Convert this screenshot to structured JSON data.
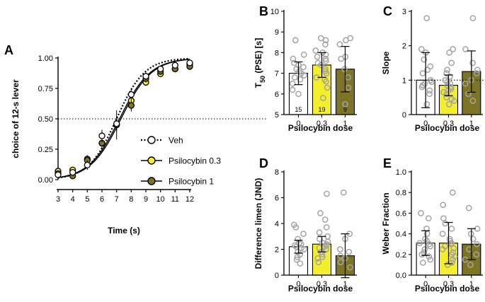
{
  "colors": {
    "veh": "#ffffff",
    "psi03": "#f4ee2c",
    "psi1": "#7d7425",
    "point_gray": "#a4a4a4",
    "axis": "#000000"
  },
  "chart_data": [
    {
      "panel": "A",
      "type": "line",
      "xlabel": "Time (s)",
      "ylabel": "choice of 12-s lever",
      "xlim": [
        3,
        12
      ],
      "ylim": [
        0,
        1
      ],
      "xticks": [
        "3",
        "4",
        "5",
        "6",
        "7",
        "8",
        "9",
        "10",
        "11",
        "12"
      ],
      "yticks": [
        "0.00",
        "0.25",
        "0.50",
        "0.75",
        "1.00"
      ],
      "reference_line": 0.5,
      "x": [
        3,
        4,
        5,
        6,
        7,
        8,
        9,
        10,
        11,
        12
      ],
      "series": [
        {
          "name": "Veh",
          "values": [
            0.04,
            0.06,
            0.12,
            0.36,
            0.46,
            0.7,
            0.85,
            0.91,
            0.94,
            0.96
          ],
          "errors": [
            0.02,
            0.02,
            0.04,
            0.05,
            0.06,
            0.05,
            0.03,
            0.02,
            0.02,
            0.02
          ],
          "fit": {
            "x50": 7.0,
            "k": 1.05
          }
        },
        {
          "name": "Psilocybin 0.3",
          "values": [
            0.07,
            0.08,
            0.17,
            0.3,
            0.45,
            0.65,
            0.8,
            0.87,
            0.91,
            0.95
          ],
          "errors": [
            0.02,
            0.02,
            0.03,
            0.04,
            0.05,
            0.05,
            0.03,
            0.02,
            0.02,
            0.02
          ],
          "fit": {
            "x50": 7.3,
            "k": 0.95
          }
        },
        {
          "name": "Psilocybin 1",
          "values": [
            0.05,
            0.03,
            0.16,
            0.3,
            0.45,
            0.61,
            0.83,
            0.89,
            0.91,
            0.93
          ],
          "errors": [
            0.02,
            0.02,
            0.04,
            0.04,
            0.12,
            0.05,
            0.03,
            0.02,
            0.02,
            0.02
          ],
          "fit": {
            "x50": 7.2,
            "k": 0.95
          }
        }
      ]
    },
    {
      "panel": "B",
      "type": "bar",
      "xlabel": "Psilocybin dose",
      "ylabel_main": "T",
      "ylabel_sub": "50",
      "ylabel_rest": " (PSE) [s]",
      "ylim": [
        5,
        10
      ],
      "yticks": [
        "5",
        "6",
        "7",
        "8",
        "9",
        "10"
      ],
      "categories": [
        "0",
        "0.3",
        "1"
      ],
      "values": [
        7.0,
        7.4,
        7.2
      ],
      "sd": [
        0.55,
        0.6,
        1.1
      ],
      "n_labels": [
        "15",
        "19",
        "9"
      ],
      "points": [
        [
          8.6,
          7.9,
          7.7,
          7.5,
          7.4,
          7.3,
          7.2,
          7.1,
          7.0,
          6.9,
          6.8,
          6.7,
          6.5,
          6.2,
          6.0
        ],
        [
          8.7,
          8.6,
          8.4,
          8.1,
          8.0,
          7.9,
          7.8,
          7.7,
          7.6,
          7.5,
          7.4,
          7.2,
          7.1,
          7.0,
          6.8,
          6.7,
          6.6,
          6.3,
          5.8
        ],
        [
          8.7,
          8.6,
          8.4,
          7.8,
          7.7,
          7.2,
          6.8,
          6.3,
          5.5
        ]
      ]
    },
    {
      "panel": "C",
      "type": "bar",
      "xlabel": "Psilocybin dose",
      "ylabel": "Slope",
      "ylim": [
        0,
        3
      ],
      "yticks": [
        "0",
        "1",
        "2",
        "3"
      ],
      "reference_line": 1,
      "categories": [
        "0",
        "0.3",
        "1"
      ],
      "values": [
        1.0,
        0.85,
        1.25
      ],
      "sd": [
        0.8,
        0.3,
        0.6
      ],
      "points": [
        [
          2.8,
          1.9,
          1.8,
          1.6,
          1.4,
          1.3,
          1.2,
          1.0,
          0.95,
          0.9,
          0.85,
          0.8,
          0.7,
          0.6,
          0.3
        ],
        [
          1.9,
          1.8,
          1.5,
          1.3,
          1.2,
          1.1,
          1.0,
          0.95,
          0.9,
          0.85,
          0.8,
          0.75,
          0.7,
          0.65,
          0.6,
          0.5,
          0.45,
          0.4,
          0.3
        ],
        [
          2.8,
          1.9,
          1.5,
          1.3,
          1.2,
          1.0,
          0.9,
          0.6,
          0.4
        ]
      ]
    },
    {
      "panel": "D",
      "type": "bar",
      "xlabel": "Psilocybin dose",
      "ylabel": "Difference limen (JND)",
      "ylim": [
        0,
        8
      ],
      "yticks": [
        "0",
        "2",
        "4",
        "6",
        "8"
      ],
      "categories": [
        "0",
        "0.3",
        "1"
      ],
      "values": [
        2.2,
        2.4,
        1.5
      ],
      "sd": [
        0.5,
        0.6,
        1.7
      ],
      "points": [
        [
          3.9,
          3.7,
          3.2,
          2.8,
          2.5,
          2.4,
          2.3,
          2.2,
          2.1,
          2.0,
          1.8,
          1.6,
          1.4,
          1.2,
          0.9
        ],
        [
          6.3,
          4.8,
          4.3,
          3.7,
          3.3,
          3.0,
          2.8,
          2.6,
          2.5,
          2.4,
          2.3,
          2.2,
          2.1,
          2.0,
          1.8,
          1.6,
          1.4,
          1.3,
          1.0
        ],
        [
          6.4,
          3.2,
          2.8,
          2.0,
          1.8,
          1.5,
          1.3,
          1.0,
          0.6
        ]
      ]
    },
    {
      "panel": "E",
      "type": "bar",
      "xlabel": "Psilocybin dose",
      "ylabel": "Weber Fraction",
      "ylim": [
        0,
        1
      ],
      "yticks": [
        "0.0",
        "0.2",
        "0.4",
        "0.6",
        "0.8",
        "1.0"
      ],
      "categories": [
        "0",
        "0.3",
        "1"
      ],
      "values": [
        0.31,
        0.31,
        0.3
      ],
      "sd": [
        0.12,
        0.2,
        0.15
      ],
      "points": [
        [
          0.6,
          0.55,
          0.45,
          0.4,
          0.35,
          0.33,
          0.31,
          0.3,
          0.28,
          0.25,
          0.22,
          0.2,
          0.18,
          0.15,
          0.12
        ],
        [
          0.8,
          0.68,
          0.55,
          0.5,
          0.45,
          0.4,
          0.35,
          0.33,
          0.31,
          0.3,
          0.28,
          0.26,
          0.25,
          0.22,
          0.2,
          0.18,
          0.15,
          0.12,
          0.1
        ],
        [
          0.65,
          0.45,
          0.4,
          0.35,
          0.3,
          0.25,
          0.2,
          0.15,
          0.1
        ]
      ]
    }
  ]
}
